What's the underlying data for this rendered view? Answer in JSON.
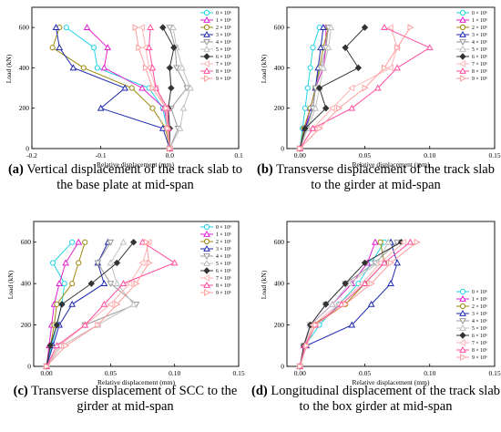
{
  "series_names": [
    "0 × 10⁶",
    "1 × 10⁶",
    "2 × 10⁶",
    "3 × 10⁶",
    "4 × 10⁶",
    "5 × 10⁶",
    "6 × 10⁶",
    "7 × 10⁶",
    "8 × 10⁶",
    "9 × 10⁶"
  ],
  "series_colors": [
    "#22d3e6",
    "#e020d0",
    "#a08a10",
    "#1f2ab0",
    "#9a9a9a",
    "#c0c0c0",
    "#333333",
    "#ffb3b3",
    "#ff4fa0",
    "#ff9d9d"
  ],
  "series_markers": [
    "circle-open",
    "triangle-open",
    "circle-open",
    "triangle-open",
    "triangle-down-open",
    "triangle-open",
    "diamond",
    "triangle-left-open",
    "triangle-open",
    "triangle-right-open"
  ],
  "chart_data": [
    {
      "id": "a",
      "type": "line",
      "caption_label": "(a)",
      "caption_text": "Vertical displacement of the track slab to the base plate at mid-span",
      "xlabel": "Relative displacement (mm)",
      "ylabel": "Load (kN)",
      "xlim": [
        -0.2,
        0.1
      ],
      "ylim": [
        0,
        700
      ],
      "xticks": [
        -0.2,
        -0.1,
        0.0,
        0.1
      ],
      "xtick_labels": [
        "-0.2",
        "-0.1",
        "0.0",
        "0.1"
      ],
      "yticks": [
        0,
        200,
        400,
        600
      ],
      "ytick_labels": [
        "0",
        "200",
        "400",
        "600"
      ],
      "legend_position": "top-right",
      "y": [
        0,
        100,
        200,
        300,
        400,
        500,
        600
      ],
      "series": [
        {
          "name": "0 × 10⁶",
          "x": [
            0.0,
            -0.004,
            -0.01,
            -0.03,
            -0.105,
            -0.11,
            -0.15
          ]
        },
        {
          "name": "1 × 10⁶",
          "x": [
            0.0,
            -0.003,
            -0.008,
            -0.04,
            -0.095,
            -0.09,
            -0.12
          ]
        },
        {
          "name": "2 × 10⁶",
          "x": [
            0.0,
            -0.006,
            -0.025,
            -0.055,
            -0.125,
            -0.17,
            -0.16
          ]
        },
        {
          "name": "3 × 10⁶",
          "x": [
            0.0,
            -0.01,
            -0.1,
            -0.065,
            -0.14,
            -0.16,
            -0.165
          ]
        },
        {
          "name": "4 × 10⁶",
          "x": [
            0.0,
            0.012,
            0.002,
            0.025,
            0.01,
            0.008,
            0.0
          ]
        },
        {
          "name": "5 × 10⁶",
          "x": [
            0.0,
            0.015,
            0.02,
            0.03,
            0.018,
            0.01,
            0.005
          ]
        },
        {
          "name": "6 × 10⁶",
          "x": [
            0.0,
            0.0,
            -0.002,
            0.002,
            0.0,
            0.006,
            -0.01
          ]
        },
        {
          "name": "7 × 10⁶",
          "x": [
            0.0,
            -0.004,
            -0.006,
            -0.02,
            -0.03,
            -0.035,
            -0.04
          ]
        },
        {
          "name": "8 × 10⁶",
          "x": [
            0.0,
            -0.002,
            -0.003,
            -0.02,
            -0.025,
            -0.03,
            -0.028
          ]
        },
        {
          "name": "9 × 10⁶",
          "x": [
            0.0,
            -0.003,
            -0.005,
            -0.025,
            -0.035,
            -0.045,
            -0.05
          ]
        }
      ]
    },
    {
      "id": "b",
      "type": "line",
      "caption_label": "(b)",
      "caption_text": "Transverse displacement of the track slab to the girder at mid-span",
      "xlabel": "Relative displacement (mm)",
      "ylabel": "Load (kN)",
      "xlim": [
        -0.01,
        0.15
      ],
      "ylim": [
        0,
        700
      ],
      "xticks": [
        0.0,
        0.05,
        0.1,
        0.15
      ],
      "xtick_labels": [
        "0.00",
        "0.05",
        "0.10",
        "0.15"
      ],
      "yticks": [
        0,
        200,
        400,
        600
      ],
      "ytick_labels": [
        "0",
        "200",
        "400",
        "600"
      ],
      "legend_position": "top-right",
      "y": [
        0,
        100,
        200,
        300,
        400,
        500,
        600
      ],
      "series": [
        {
          "name": "0 × 10⁶",
          "x": [
            0.0,
            0.002,
            0.004,
            0.006,
            0.008,
            0.01,
            0.015
          ]
        },
        {
          "name": "1 × 10⁶",
          "x": [
            0.0,
            0.004,
            0.008,
            0.012,
            0.018,
            0.02,
            0.02
          ]
        },
        {
          "name": "2 × 10⁶",
          "x": [
            0.0,
            0.003,
            0.008,
            0.012,
            0.015,
            0.018,
            0.022
          ]
        },
        {
          "name": "3 × 10⁶",
          "x": [
            0.0,
            0.004,
            0.01,
            0.012,
            0.014,
            0.016,
            0.018
          ]
        },
        {
          "name": "4 × 10⁶",
          "x": [
            0.0,
            0.005,
            0.01,
            0.012,
            0.016,
            0.02,
            0.022
          ]
        },
        {
          "name": "5 × 10⁶",
          "x": [
            0.0,
            0.006,
            0.012,
            0.015,
            0.018,
            0.022,
            0.024
          ]
        },
        {
          "name": "6 × 10⁶",
          "x": [
            0.0,
            0.004,
            0.02,
            0.015,
            0.045,
            0.035,
            0.05
          ]
        },
        {
          "name": "7 × 10⁶",
          "x": [
            0.0,
            0.01,
            0.025,
            0.04,
            0.07,
            0.075,
            0.07
          ]
        },
        {
          "name": "8 × 10⁶",
          "x": [
            0.0,
            0.01,
            0.04,
            0.06,
            0.075,
            0.1,
            0.065
          ]
        },
        {
          "name": "9 × 10⁶",
          "x": [
            0.0,
            0.015,
            0.03,
            0.05,
            0.065,
            0.075,
            0.085
          ]
        }
      ]
    },
    {
      "id": "c",
      "type": "line",
      "caption_label": "(c)",
      "caption_text": "Transverse displacement of SCC to the girder at mid-span",
      "xlabel": "Relative displacement (mm)",
      "ylabel": "Load (kN)",
      "xlim": [
        -0.01,
        0.15
      ],
      "ylim": [
        0,
        700
      ],
      "xticks": [
        0.0,
        0.05,
        0.1,
        0.15
      ],
      "xtick_labels": [
        "0.00",
        "0.05",
        "0.10",
        "0.15"
      ],
      "yticks": [
        0,
        200,
        400,
        600
      ],
      "ytick_labels": [
        "0",
        "200",
        "400",
        "600"
      ],
      "legend_position": "top-right",
      "y": [
        0,
        100,
        200,
        300,
        400,
        500,
        600
      ],
      "series": [
        {
          "name": "0 × 10⁶",
          "x": [
            0.0,
            0.004,
            0.008,
            0.012,
            0.014,
            0.005,
            0.02
          ]
        },
        {
          "name": "1 × 10⁶",
          "x": [
            0.0,
            0.002,
            0.004,
            0.006,
            0.01,
            0.015,
            0.025
          ]
        },
        {
          "name": "2 × 10⁶",
          "x": [
            0.0,
            0.003,
            0.006,
            0.008,
            0.02,
            0.025,
            0.03
          ]
        },
        {
          "name": "3 × 10⁶",
          "x": [
            0.0,
            0.005,
            0.01,
            0.02,
            0.045,
            0.04,
            0.048
          ]
        },
        {
          "name": "4 × 10⁶",
          "x": [
            0.0,
            0.01,
            0.03,
            0.07,
            0.05,
            0.04,
            0.05
          ]
        },
        {
          "name": "5 × 10⁶",
          "x": [
            0.0,
            0.012,
            0.04,
            0.068,
            0.055,
            0.05,
            0.06
          ]
        },
        {
          "name": "6 × 10⁶",
          "x": [
            0.0,
            0.003,
            0.008,
            0.012,
            0.035,
            0.055,
            0.068
          ]
        },
        {
          "name": "7 × 10⁶",
          "x": [
            0.0,
            0.01,
            0.03,
            0.05,
            0.065,
            0.075,
            0.08
          ]
        },
        {
          "name": "8 × 10⁶",
          "x": [
            0.0,
            0.008,
            0.03,
            0.045,
            0.06,
            0.1,
            0.075
          ]
        },
        {
          "name": "9 × 10⁶",
          "x": [
            0.0,
            0.015,
            0.04,
            0.055,
            0.07,
            0.08,
            0.078
          ]
        }
      ]
    },
    {
      "id": "d",
      "type": "line",
      "caption_label": "(d)",
      "caption_text": "Longitudinal displacement of the track slab to the box girder at mid-span",
      "xlabel": "Relative displacement (mm)",
      "ylabel": "Load (kN)",
      "xlim": [
        -0.01,
        0.15
      ],
      "ylim": [
        0,
        700
      ],
      "xticks": [
        0.0,
        0.05,
        0.1,
        0.15
      ],
      "xtick_labels": [
        "0.00",
        "0.05",
        "0.10",
        "0.15"
      ],
      "yticks": [
        0,
        200,
        400,
        600
      ],
      "ytick_labels": [
        "0",
        "200",
        "400",
        "600"
      ],
      "legend_position": "bottom-right",
      "y": [
        0,
        100,
        200,
        300,
        400,
        500,
        600
      ],
      "series": [
        {
          "name": "0 × 10⁶",
          "x": [
            0.0,
            0.004,
            0.015,
            0.03,
            0.045,
            0.055,
            0.065
          ]
        },
        {
          "name": "1 × 10⁶",
          "x": [
            0.0,
            0.003,
            0.008,
            0.025,
            0.04,
            0.052,
            0.058
          ]
        },
        {
          "name": "2 × 10⁶",
          "x": [
            0.0,
            0.004,
            0.01,
            0.035,
            0.05,
            0.065,
            0.062
          ]
        },
        {
          "name": "3 × 10⁶",
          "x": [
            0.0,
            0.005,
            0.04,
            0.055,
            0.07,
            0.075,
            0.07
          ]
        },
        {
          "name": "4 × 10⁶",
          "x": [
            0.0,
            0.003,
            0.008,
            0.02,
            0.035,
            0.058,
            0.075
          ]
        },
        {
          "name": "5 × 10⁶",
          "x": [
            0.0,
            0.004,
            0.008,
            0.025,
            0.038,
            0.06,
            0.068
          ]
        },
        {
          "name": "6 × 10⁶",
          "x": [
            0.0,
            0.003,
            0.008,
            0.02,
            0.035,
            0.05,
            0.078
          ]
        },
        {
          "name": "7 × 10⁶",
          "x": [
            0.0,
            0.004,
            0.01,
            0.03,
            0.048,
            0.062,
            0.08
          ]
        },
        {
          "name": "8 × 10⁶",
          "x": [
            0.0,
            0.004,
            0.012,
            0.032,
            0.05,
            0.065,
            0.085
          ]
        },
        {
          "name": "9 × 10⁶",
          "x": [
            0.0,
            0.005,
            0.012,
            0.035,
            0.055,
            0.07,
            0.09
          ]
        }
      ]
    }
  ]
}
